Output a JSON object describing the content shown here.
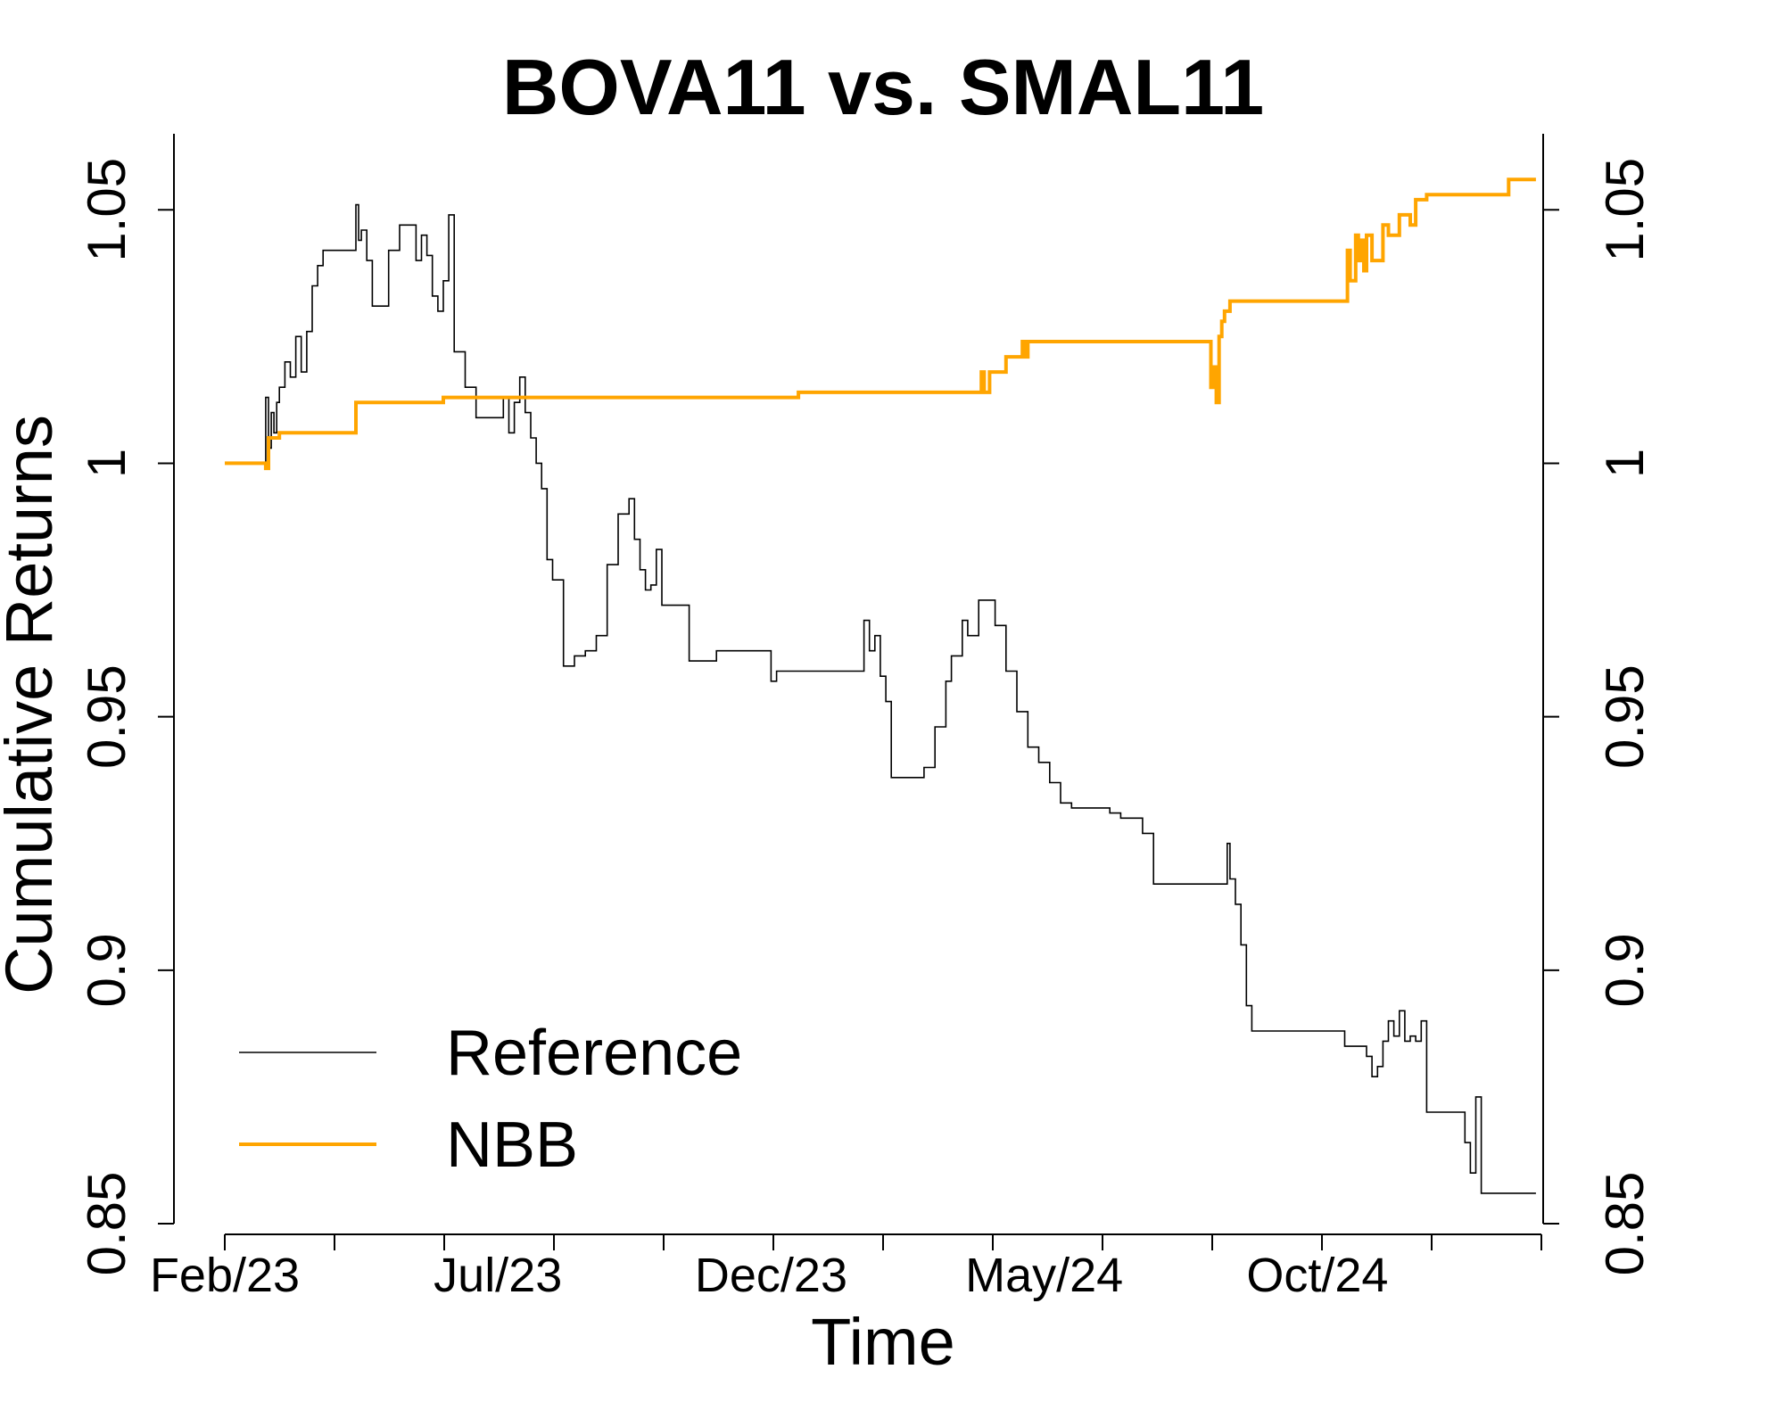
{
  "chart_data": {
    "type": "line",
    "title": "BOVA11 vs. SMAL11",
    "xlabel": "Time",
    "ylabel": "Cumulative Returns",
    "ylim": [
      0.85,
      1.065
    ],
    "xlim": [
      0,
      24.1
    ],
    "y_ticks": [
      0.85,
      0.9,
      0.95,
      1,
      1.05
    ],
    "y_tick_labels": [
      "0.85",
      "0.9",
      "0.95",
      "1",
      "1.05"
    ],
    "y_axis_right": true,
    "x_minor_ticks_count": 13,
    "x_tick_labels": [
      {
        "label": "Feb/23",
        "x": 0
      },
      {
        "label": "Jul/23",
        "x": 5
      },
      {
        "label": "Dec/23",
        "x": 10
      },
      {
        "label": "May/24",
        "x": 15
      },
      {
        "label": "Oct/24",
        "x": 20
      }
    ],
    "legend": {
      "position": "bottom-left",
      "entries": [
        "Reference",
        "NBB"
      ]
    },
    "series": [
      {
        "name": "Reference",
        "color": "#000000",
        "step": true,
        "x": [
          0,
          0.7,
          0.75,
          0.8,
          0.85,
          0.9,
          0.95,
          1.0,
          1.1,
          1.2,
          1.3,
          1.4,
          1.5,
          1.6,
          1.7,
          1.8,
          2.0,
          2.2,
          2.34,
          2.4,
          2.45,
          2.5,
          2.6,
          2.7,
          2.8,
          3.0,
          3.2,
          3.35,
          3.4,
          3.5,
          3.6,
          3.7,
          3.8,
          3.9,
          4.0,
          4.1,
          4.2,
          4.4,
          4.6,
          4.8,
          5.0,
          5.1,
          5.2,
          5.3,
          5.4,
          5.5,
          5.6,
          5.7,
          5.8,
          5.9,
          6.0,
          6.2,
          6.4,
          6.6,
          6.8,
          7.0,
          7.2,
          7.4,
          7.5,
          7.6,
          7.7,
          7.8,
          7.9,
          8.0,
          8.5,
          9.0,
          9.5,
          9.8,
          10.0,
          10.1,
          10.5,
          11.0,
          11.5,
          11.7,
          11.8,
          11.9,
          12.0,
          12.1,
          12.2,
          12.4,
          12.6,
          12.8,
          13.0,
          13.2,
          13.3,
          13.5,
          13.6,
          13.8,
          13.95,
          14.1,
          14.3,
          14.5,
          14.7,
          14.9,
          15.1,
          15.3,
          15.5,
          15.7,
          15.9,
          16.0,
          16.2,
          16.4,
          16.5,
          16.6,
          16.8,
          17.0,
          17.5,
          18.0,
          18.3,
          18.35,
          18.4,
          18.5,
          18.6,
          18.7,
          18.8,
          19.0,
          19.5,
          20.0,
          20.5,
          20.8,
          20.9,
          21.0,
          21.1,
          21.2,
          21.3,
          21.4,
          21.5,
          21.6,
          21.7,
          21.8,
          21.9,
          22.0,
          22.5,
          22.6,
          22.7,
          22.8,
          22.9,
          23.0,
          23.5,
          24.0
        ],
        "values": [
          1.0,
          1.0,
          1.013,
          1.003,
          1.01,
          1.006,
          1.012,
          1.015,
          1.02,
          1.017,
          1.025,
          1.018,
          1.026,
          1.035,
          1.039,
          1.042,
          1.042,
          1.042,
          1.042,
          1.051,
          1.044,
          1.046,
          1.04,
          1.031,
          1.031,
          1.042,
          1.047,
          1.047,
          1.047,
          1.04,
          1.045,
          1.041,
          1.033,
          1.03,
          1.036,
          1.049,
          1.022,
          1.015,
          1.009,
          1.009,
          1.009,
          1.013,
          1.006,
          1.012,
          1.017,
          1.01,
          1.005,
          1.0,
          0.995,
          0.981,
          0.977,
          0.96,
          0.962,
          0.963,
          0.966,
          0.98,
          0.99,
          0.993,
          0.985,
          0.979,
          0.975,
          0.976,
          0.983,
          0.972,
          0.961,
          0.963,
          0.963,
          0.963,
          0.957,
          0.959,
          0.959,
          0.959,
          0.959,
          0.969,
          0.963,
          0.966,
          0.958,
          0.953,
          0.938,
          0.938,
          0.938,
          0.94,
          0.948,
          0.957,
          0.962,
          0.969,
          0.966,
          0.973,
          0.973,
          0.968,
          0.959,
          0.951,
          0.944,
          0.941,
          0.937,
          0.933,
          0.932,
          0.932,
          0.932,
          0.932,
          0.931,
          0.93,
          0.93,
          0.93,
          0.927,
          0.917,
          0.917,
          0.917,
          0.917,
          0.925,
          0.918,
          0.913,
          0.905,
          0.893,
          0.888,
          0.888,
          0.888,
          0.888,
          0.885,
          0.885,
          0.883,
          0.879,
          0.881,
          0.886,
          0.89,
          0.887,
          0.892,
          0.886,
          0.887,
          0.886,
          0.89,
          0.872,
          0.872,
          0.872,
          0.866,
          0.86,
          0.875,
          0.856,
          0.856,
          0.856
        ]
      },
      {
        "name": "NBB",
        "color": "#FFA500",
        "step": true,
        "x": [
          0,
          0.7,
          0.75,
          0.8,
          1.0,
          1.5,
          2.0,
          2.34,
          2.4,
          3.0,
          4.0,
          5.0,
          6.0,
          8.0,
          9.0,
          10.0,
          10.5,
          12.0,
          13.0,
          13.8,
          13.85,
          13.9,
          14.0,
          14.3,
          14.6,
          14.65,
          14.7,
          15.0,
          16.0,
          17.0,
          18.0,
          18.05,
          18.1,
          18.15,
          18.2,
          18.25,
          18.3,
          18.4,
          18.5,
          19.0,
          20.0,
          20.5,
          20.55,
          20.6,
          20.7,
          20.75,
          20.8,
          20.85,
          20.9,
          21.0,
          21.2,
          21.3,
          21.5,
          21.7,
          21.8,
          22.0,
          22.5,
          23.0,
          23.5,
          24.0
        ],
        "values": [
          1.0,
          1.0,
          0.999,
          1.005,
          1.006,
          1.006,
          1.006,
          1.006,
          1.012,
          1.012,
          1.013,
          1.013,
          1.013,
          1.013,
          1.013,
          1.013,
          1.014,
          1.014,
          1.014,
          1.014,
          1.018,
          1.014,
          1.018,
          1.021,
          1.024,
          1.021,
          1.024,
          1.024,
          1.024,
          1.024,
          1.024,
          1.015,
          1.019,
          1.012,
          1.025,
          1.028,
          1.03,
          1.032,
          1.032,
          1.032,
          1.032,
          1.032,
          1.042,
          1.036,
          1.045,
          1.04,
          1.044,
          1.038,
          1.045,
          1.04,
          1.047,
          1.045,
          1.049,
          1.047,
          1.052,
          1.053,
          1.053,
          1.053,
          1.056,
          1.056
        ]
      }
    ]
  }
}
